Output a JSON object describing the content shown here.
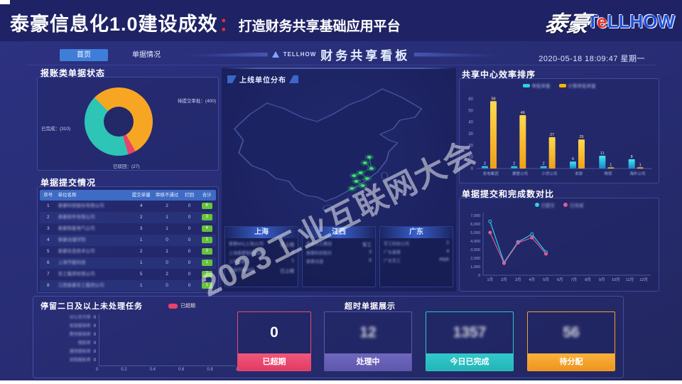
{
  "slide": {
    "title_main": "泰豪信息化1.0建设成效",
    "title_colon": "：",
    "title_sub": "打造财务共享基础应用平台",
    "logo_script": "泰豪",
    "logo_t1": "T",
    "logo_e": "e",
    "logo_t2": "LLHOW"
  },
  "topbar": {
    "tabs": [
      {
        "label": "首页",
        "active": true
      },
      {
        "label": "单据情况",
        "active": false
      }
    ],
    "brand": "TELLHOW",
    "board_title": "财务共享看板",
    "datetime": "2020-05-18 18:09:47 星期一"
  },
  "watermark": "2023工业互联网大会",
  "donut_labels": {
    "right": "待提交审批：(400)",
    "left": "已完成：(310)",
    "bottom": "已驳回：(27)"
  },
  "submit_table": {
    "title": "单据提交情况",
    "headers": [
      "序号",
      "单位名称",
      "提交单量",
      "审核不通过",
      "打回",
      "合计"
    ],
    "rows": [
      [
        "1",
        "泰豪科技股份有限公司",
        "4",
        "2",
        "0",
        "6"
      ],
      [
        "2",
        "泰豪软件有限公司",
        "2",
        "1",
        "0",
        "3"
      ],
      [
        "3",
        "泰豪智能电气公司",
        "3",
        "1",
        "0",
        "4"
      ],
      [
        "4",
        "泰豪动漫学院",
        "1",
        "0",
        "0",
        "1"
      ],
      [
        "5",
        "泰豪信息技术公司",
        "2",
        "1",
        "0",
        "3"
      ],
      [
        "6",
        "上海节能科技",
        "1",
        "0",
        "0",
        "1"
      ],
      [
        "7",
        "军工集团有限公司",
        "5",
        "2",
        "0",
        "7"
      ],
      [
        "8",
        "江西泰豪军工集团公司",
        "1",
        "0",
        "0",
        "1"
      ]
    ]
  },
  "map": {
    "badge": "上线单位分布"
  },
  "cities": [
    {
      "name": "上海",
      "rows": [
        [
          "泰豪MX(上海)公司",
          "已上线"
        ],
        [
          "上海泰豪智能科技",
          "4"
        ],
        [
          "上海泰豪",
          "1"
        ],
        [
          "上海节能科技",
          "已上线"
        ]
      ]
    },
    {
      "name": "江西",
      "rows": [
        [
          "泰豪军工集团",
          "军工"
        ],
        [
          "泰豪科技股份",
          "3"
        ],
        [
          "泰豪动漫",
          "5"
        ]
      ]
    },
    {
      "name": "广东",
      "rows": [
        [
          "军工科技公司",
          "2"
        ],
        [
          "广东泰豪",
          "4"
        ],
        [
          "广东军工",
          "PER"
        ]
      ]
    }
  ],
  "overtime": {
    "title": "超时单据展示",
    "cards": [
      {
        "value": "0",
        "label": "已超期",
        "accent": "#ea4a70",
        "foot_from": "#f0577c",
        "foot_to": "#e23b64",
        "blur": false
      },
      {
        "value": "12",
        "label": "处理中",
        "accent": "#565aa6",
        "foot_from": "#6f68bd",
        "foot_to": "#5f58ae",
        "blur": true
      },
      {
        "value": "1357",
        "label": "今日已完成",
        "accent": "#2fc3c5",
        "foot_from": "#33c9cb",
        "foot_to": "#23b5b7",
        "blur": true
      },
      {
        "value": "56",
        "label": "待分配",
        "accent": "#f0a02e",
        "foot_from": "#f7b23c",
        "foot_to": "#ef9420",
        "blur": true
      }
    ]
  },
  "colors": {
    "accent_cyan": "#2bd0e8",
    "accent_yellow": "#f7b500",
    "accent_pink": "#e8436a",
    "accent_teal": "#2ec4b6",
    "accent_orange": "#f6a623",
    "badge_green": "#67c23a"
  },
  "chart_data": [
    {
      "type": "pie",
      "title": "报账类单据状态",
      "labels": [
        "待提交审批",
        "已驳回",
        "已完成"
      ],
      "values": [
        400,
        27,
        310
      ],
      "colors": [
        "#f6a623",
        "#e8436a",
        "#2ec4b6"
      ],
      "donut": true,
      "start_angle_deg": 315
    },
    {
      "type": "bar",
      "title": "共享中心效率排序",
      "categories": [
        "发电集团",
        "建管公司",
        "小贷公司",
        "本部",
        "物贸",
        "海外公司"
      ],
      "series": [
        {
          "name": "审批单量",
          "color": "#2bd0e8",
          "values": [
            2,
            2,
            2,
            6,
            11,
            8
          ]
        },
        {
          "name": "计算审批单量",
          "color": "#f7b500",
          "values": [
            58,
            46,
            27,
            25,
            1,
            1
          ]
        }
      ],
      "ylim": [
        0,
        60
      ],
      "yticks": [
        0,
        10,
        20,
        30,
        40,
        50,
        60
      ],
      "legend_position": "top"
    },
    {
      "type": "line",
      "title": "单据提交和完成数对比",
      "categories": [
        "1月",
        "2月",
        "3月",
        "4月",
        "5月",
        "6月",
        "7月",
        "8月",
        "9月",
        "10月",
        "11月",
        "12月"
      ],
      "series": [
        {
          "name": "已提交",
          "color": "#2bd0e8",
          "values": [
            6300,
            1500,
            3900,
            4800,
            2700,
            null,
            null,
            null,
            null,
            null,
            null,
            null
          ]
        },
        {
          "name": "已完成",
          "color": "#e05c9a",
          "values": [
            5000,
            1400,
            3800,
            4400,
            2500,
            null,
            null,
            null,
            null,
            null,
            null,
            null
          ]
        }
      ],
      "ylim": [
        0,
        7000
      ],
      "ytick_labels": [
        "7,000",
        "6,000",
        "5,000",
        "4,000",
        "3,000",
        "2,000",
        "1,000",
        "0"
      ],
      "legend_position": "top"
    },
    {
      "type": "bar",
      "orientation": "horizontal",
      "title": "停留二日及以上未处理任务",
      "legend": [
        "已超期"
      ],
      "categories": [
        "对公支付单",
        "差旅报销单",
        "费用报销单",
        "借款单",
        "通用报账单",
        "采购报账单"
      ],
      "values": [
        0,
        0,
        0,
        0,
        0,
        0
      ],
      "xticks": [
        "0",
        "0.2",
        "0.4",
        "0.6",
        "0.8",
        "1"
      ],
      "xlim": [
        0,
        1
      ]
    }
  ]
}
